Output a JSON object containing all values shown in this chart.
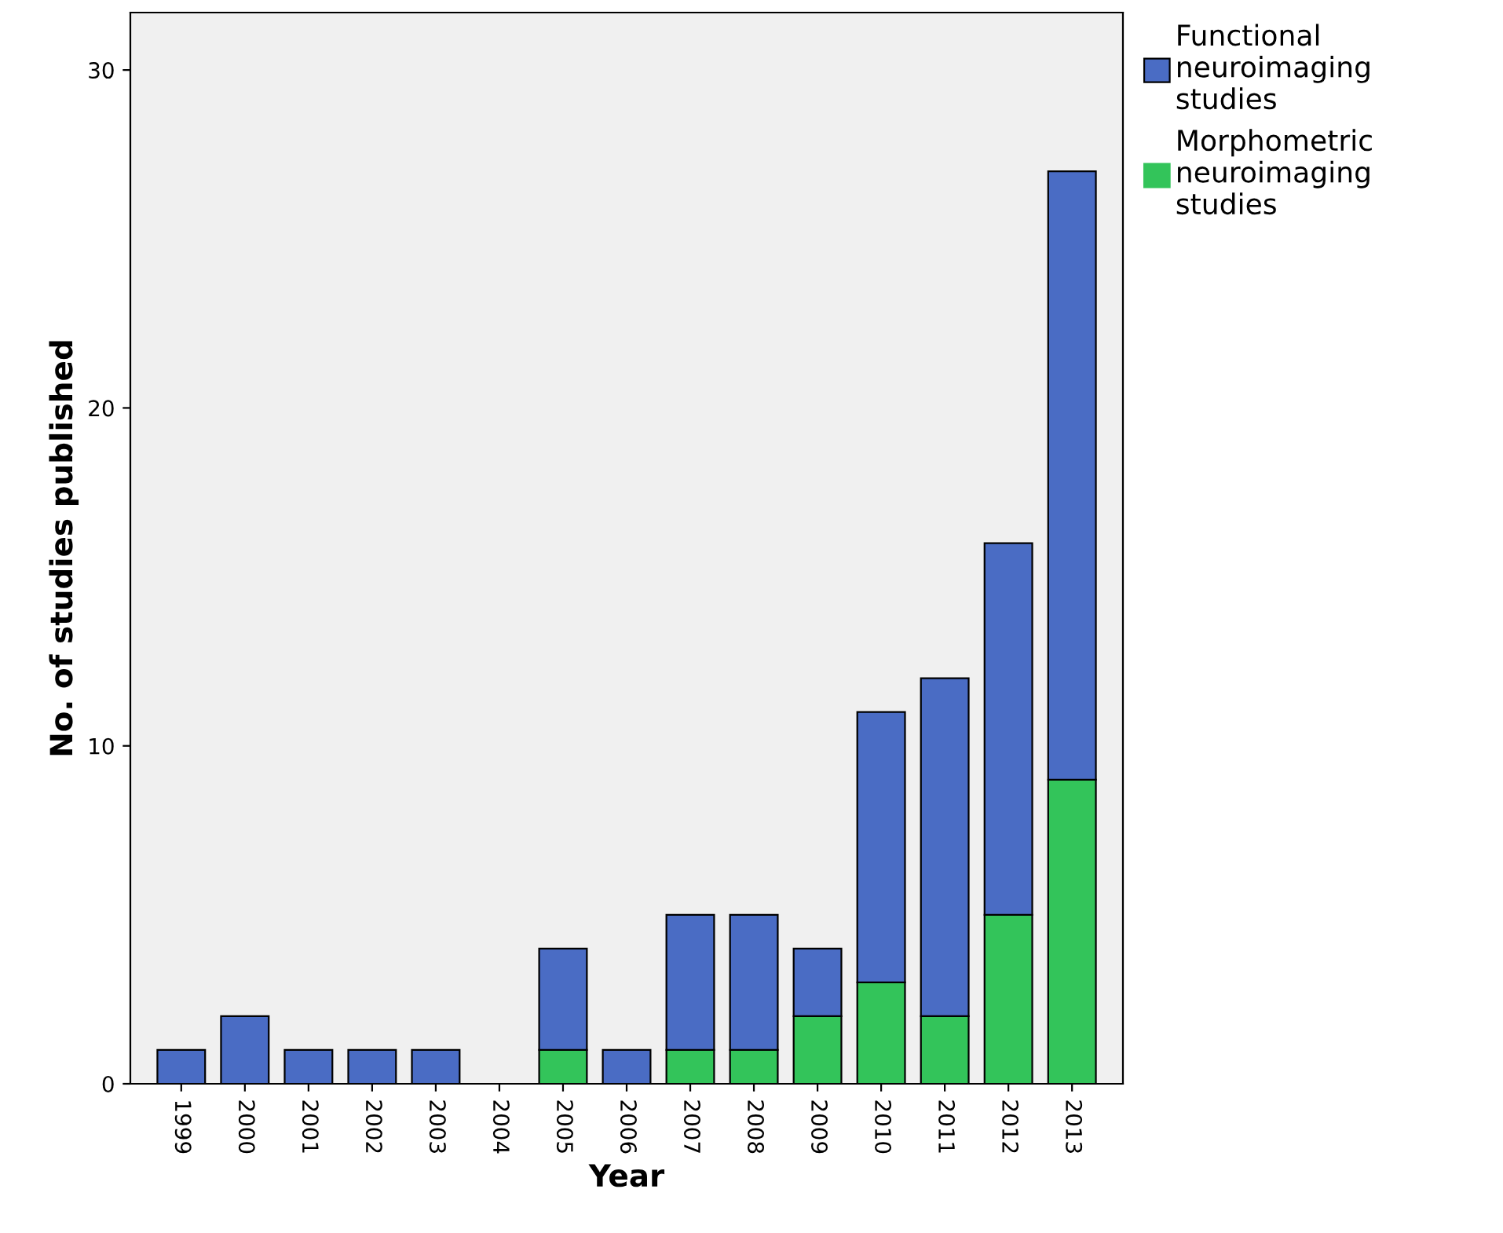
{
  "chart_data": {
    "type": "bar",
    "stacked": true,
    "xlabel": "Year",
    "ylabel": "No. of studies published",
    "categories": [
      "1999",
      "2000",
      "2001",
      "2002",
      "2003",
      "2004",
      "2005",
      "2006",
      "2007",
      "2008",
      "2009",
      "2010",
      "2011",
      "2012",
      "2013"
    ],
    "series": [
      {
        "name": "Morphometric\nneuroimaging\nstudies",
        "color": "#33c45a",
        "values": [
          0,
          0,
          0,
          0,
          0,
          0,
          1,
          0,
          1,
          1,
          2,
          3,
          2,
          5,
          9
        ]
      },
      {
        "name": "Functional\nneuroimaging\nstudies",
        "color": "#4a6cc4",
        "values": [
          1,
          2,
          1,
          1,
          1,
          0,
          3,
          1,
          4,
          4,
          2,
          8,
          10,
          11,
          18
        ]
      }
    ],
    "ylim": [
      0,
      31.7
    ],
    "yticks": [
      0,
      10,
      20,
      30
    ],
    "grid": false,
    "legend": "top right"
  }
}
